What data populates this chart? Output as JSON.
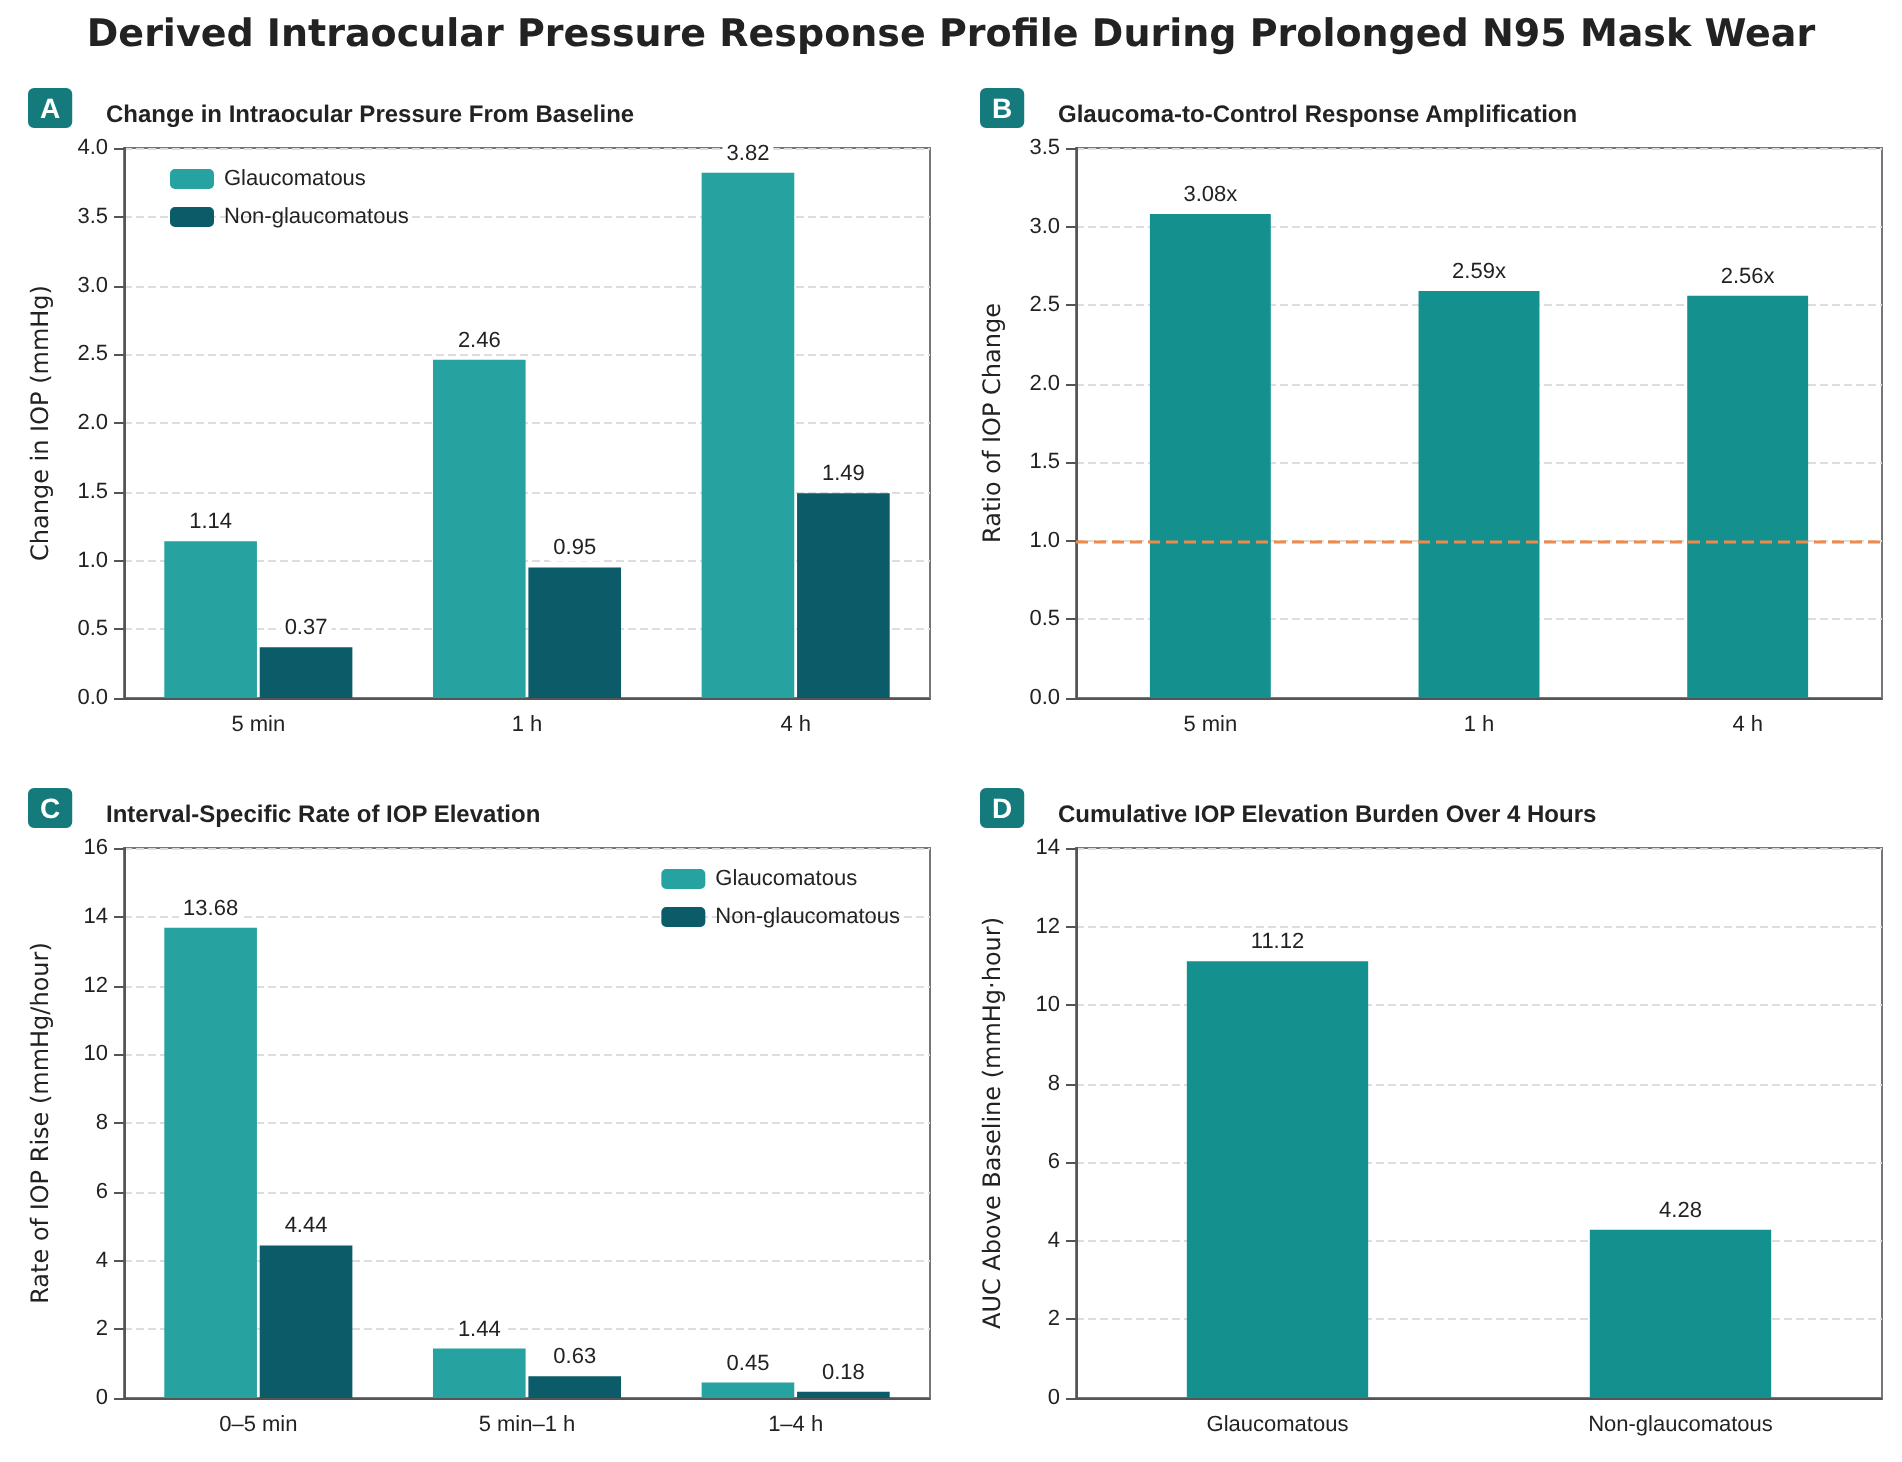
{
  "chart_data": [
    {
      "type": "bar",
      "title": "Derived Intraocular Pressure Response Profile During Prolonged N95 Mask Wear",
      "subtitle": "Change in Intraocular Pressure From Baseline",
      "annotations": [
        "A"
      ],
      "ylabel": "Change in IOP (mmHg)",
      "categories": [
        "5 min",
        "1 h",
        "4 h"
      ],
      "series": [
        {
          "name": "Glaucomatous",
          "color": "#26a3a0",
          "values": [
            1.14,
            2.46,
            3.82
          ]
        },
        {
          "name": "Non-glaucomatous",
          "color": "#0b5b69",
          "values": [
            0.37,
            0.95,
            1.49
          ]
        }
      ],
      "ylim": [
        0,
        4
      ],
      "yticks": [
        "0.0",
        "0.5",
        "1.0",
        "1.5",
        "2.0",
        "2.5",
        "3.0",
        "3.5",
        "4.0"
      ],
      "grid": "y",
      "legend": "top left",
      "data_labels": true
    },
    {
      "type": "bar",
      "title": "Glaucoma-to-Control Response Amplification",
      "annotations": [
        "B"
      ],
      "ylabel": "Ratio of IOP Change",
      "categories": [
        "5 min",
        "1 h",
        "4 h"
      ],
      "series": [
        {
          "color": "#14918f",
          "values": [
            3.08,
            2.59,
            2.56
          ],
          "value_labels": [
            "3.08x",
            "2.59x",
            "2.56x"
          ]
        }
      ],
      "ylim": [
        0,
        3.5
      ],
      "yticks": [
        "0.0",
        "0.5",
        "1.0",
        "1.5",
        "2.0",
        "2.5",
        "3.0",
        "3.5"
      ],
      "grid": "y",
      "ref_lines": [
        {
          "axis": "y",
          "value": 1,
          "color": "#ee8a4a",
          "line_style": "dashed"
        }
      ]
    },
    {
      "type": "bar",
      "title": "Interval-Specific Rate of IOP Elevation",
      "annotations": [
        "C"
      ],
      "ylabel": "Rate of IOP Rise (mmHg/hour)",
      "categories": [
        "0–5 min",
        "5 min–1 h",
        "1–4 h"
      ],
      "series": [
        {
          "name": "Glaucomatous",
          "color": "#26a3a0",
          "values": [
            13.68,
            1.44,
            0.45
          ]
        },
        {
          "name": "Non-glaucomatous",
          "color": "#0b5b69",
          "values": [
            4.44,
            0.63,
            0.18
          ]
        }
      ],
      "ylim": [
        0,
        16
      ],
      "yticks": [
        0,
        2,
        4,
        6,
        8,
        10,
        12,
        14,
        16
      ],
      "grid": "y",
      "legend": "top right",
      "data_labels": true
    },
    {
      "type": "bar",
      "title": "Cumulative IOP Elevation Burden Over 4 Hours",
      "annotations": [
        "D"
      ],
      "ylabel": "AUC Above Baseline (mmHg·hour)",
      "categories": [
        "Glaucomatous",
        "Non-glaucomatous"
      ],
      "series": [
        {
          "color": "#14918f",
          "values": [
            11.12,
            4.28
          ]
        }
      ],
      "ylim": [
        0,
        14
      ],
      "yticks": [
        0,
        2,
        4,
        6,
        8,
        10,
        12,
        14
      ],
      "grid": "y",
      "data_labels": true
    }
  ]
}
